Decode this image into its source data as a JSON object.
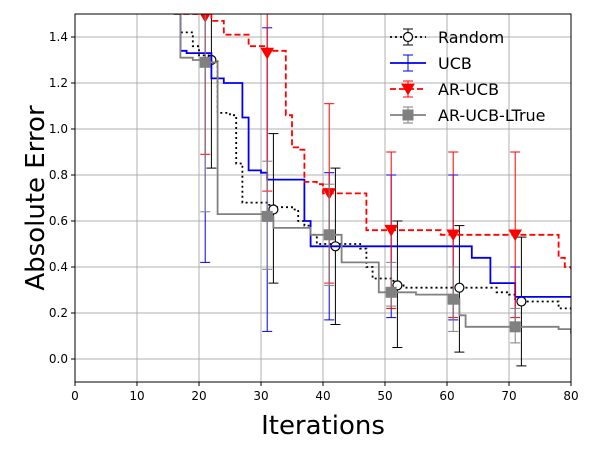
{
  "chart_data": {
    "type": "line",
    "xlabel": "Iterations",
    "ylabel": "Absolute Error",
    "xlim": [
      0,
      80
    ],
    "ylim": [
      -0.1,
      1.5
    ],
    "xticks": [
      0,
      10,
      20,
      30,
      40,
      50,
      60,
      70,
      80
    ],
    "yticks": [
      0.0,
      0.2,
      0.4,
      0.6,
      0.8,
      1.0,
      1.2,
      1.4
    ],
    "grid": true,
    "legend_position": "top-right",
    "series": [
      {
        "name": "Random",
        "color": "#000000",
        "style": "dotted",
        "marker": "circle-open",
        "x": [
          16,
          17,
          18,
          19,
          20,
          21,
          22,
          23,
          24,
          25,
          26,
          27,
          28,
          29,
          30,
          31,
          32,
          33,
          34,
          35,
          36,
          37,
          38,
          39,
          40,
          41,
          42,
          43,
          44,
          45,
          46,
          47,
          48,
          49,
          50,
          51,
          52,
          53,
          54,
          55,
          56,
          57,
          58,
          59,
          60,
          61,
          62,
          63,
          64,
          65,
          66,
          67,
          68,
          69,
          70,
          71,
          72,
          73,
          74,
          75,
          76,
          77,
          78,
          79,
          80
        ],
        "y": [
          1.5,
          1.42,
          1.42,
          1.36,
          1.32,
          1.32,
          1.3,
          1.07,
          1.07,
          1.06,
          0.85,
          0.68,
          0.68,
          0.68,
          0.68,
          0.67,
          0.66,
          0.66,
          0.66,
          0.65,
          0.6,
          0.58,
          0.54,
          0.5,
          0.5,
          0.5,
          0.5,
          0.5,
          0.5,
          0.5,
          0.48,
          0.4,
          0.35,
          0.35,
          0.35,
          0.34,
          0.32,
          0.31,
          0.31,
          0.31,
          0.31,
          0.31,
          0.31,
          0.31,
          0.31,
          0.31,
          0.31,
          0.31,
          0.31,
          0.31,
          0.31,
          0.31,
          0.29,
          0.29,
          0.28,
          0.25,
          0.25,
          0.25,
          0.25,
          0.25,
          0.25,
          0.25,
          0.22,
          0.22,
          0.22
        ],
        "markers": [
          {
            "x": 22,
            "y": 1.3,
            "err_low": 0.83,
            "err_high": 1.5
          },
          {
            "x": 32,
            "y": 0.65,
            "err_low": 0.33,
            "err_high": 0.98
          },
          {
            "x": 42,
            "y": 0.49,
            "err_low": 0.15,
            "err_high": 0.83
          },
          {
            "x": 52,
            "y": 0.32,
            "err_low": 0.05,
            "err_high": 0.6
          },
          {
            "x": 62,
            "y": 0.31,
            "err_low": 0.03,
            "err_high": 0.58
          },
          {
            "x": 72,
            "y": 0.25,
            "err_low": -0.03,
            "err_high": 0.53
          }
        ]
      },
      {
        "name": "UCB",
        "color": "#0000ee",
        "style": "solid",
        "marker": "none",
        "x": [
          16,
          17,
          18,
          19,
          20,
          21,
          22,
          23,
          24,
          25,
          26,
          27,
          28,
          29,
          30,
          31,
          32,
          33,
          34,
          35,
          36,
          37,
          38,
          39,
          40,
          41,
          42,
          43,
          44,
          45,
          46,
          47,
          48,
          49,
          50,
          51,
          52,
          53,
          54,
          55,
          56,
          57,
          58,
          59,
          60,
          61,
          62,
          63,
          64,
          65,
          66,
          67,
          68,
          69,
          70,
          71,
          72,
          73,
          74,
          75,
          76,
          77,
          78,
          79,
          80
        ],
        "y": [
          1.5,
          1.34,
          1.33,
          1.33,
          1.33,
          1.33,
          1.22,
          1.22,
          1.2,
          1.2,
          1.2,
          1.05,
          0.82,
          0.82,
          0.81,
          0.78,
          0.78,
          0.78,
          0.78,
          0.78,
          0.78,
          0.6,
          0.49,
          0.49,
          0.49,
          0.49,
          0.49,
          0.49,
          0.49,
          0.49,
          0.49,
          0.49,
          0.49,
          0.49,
          0.49,
          0.49,
          0.49,
          0.49,
          0.49,
          0.49,
          0.49,
          0.49,
          0.49,
          0.49,
          0.49,
          0.49,
          0.49,
          0.49,
          0.44,
          0.44,
          0.44,
          0.33,
          0.33,
          0.33,
          0.33,
          0.27,
          0.27,
          0.27,
          0.27,
          0.27,
          0.27,
          0.27,
          0.27,
          0.27,
          0.27
        ],
        "markers": [
          {
            "x": 21,
            "y": 1.3,
            "err_low": 0.42,
            "err_high": 1.5
          },
          {
            "x": 31,
            "y": 0.78,
            "err_low": 0.12,
            "err_high": 1.44
          },
          {
            "x": 41,
            "y": 0.49,
            "err_low": 0.17,
            "err_high": 0.81
          },
          {
            "x": 51,
            "y": 0.49,
            "err_low": 0.18,
            "err_high": 0.8
          },
          {
            "x": 61,
            "y": 0.49,
            "err_low": 0.17,
            "err_high": 0.8
          },
          {
            "x": 71,
            "y": 0.27,
            "err_low": 0.13,
            "err_high": 0.4
          }
        ]
      },
      {
        "name": "AR-UCB",
        "color": "#ff0000",
        "style": "dashed",
        "marker": "triangle-down",
        "x": [
          16,
          17,
          18,
          19,
          20,
          21,
          22,
          23,
          24,
          25,
          26,
          27,
          28,
          29,
          30,
          31,
          32,
          33,
          34,
          35,
          36,
          37,
          38,
          39,
          40,
          41,
          42,
          43,
          44,
          45,
          46,
          47,
          48,
          49,
          50,
          51,
          52,
          53,
          54,
          55,
          56,
          57,
          58,
          59,
          60,
          61,
          62,
          63,
          64,
          65,
          66,
          67,
          68,
          69,
          70,
          71,
          72,
          73,
          74,
          75,
          76,
          77,
          78,
          79,
          80
        ],
        "y": [
          1.5,
          1.5,
          1.5,
          1.5,
          1.5,
          1.5,
          1.47,
          1.47,
          1.41,
          1.41,
          1.41,
          1.41,
          1.36,
          1.36,
          1.36,
          1.34,
          1.34,
          1.34,
          1.06,
          0.92,
          0.91,
          0.77,
          0.77,
          0.76,
          0.72,
          0.72,
          0.72,
          0.72,
          0.72,
          0.72,
          0.72,
          0.56,
          0.56,
          0.56,
          0.56,
          0.56,
          0.56,
          0.56,
          0.56,
          0.56,
          0.56,
          0.56,
          0.56,
          0.54,
          0.54,
          0.54,
          0.54,
          0.54,
          0.54,
          0.54,
          0.54,
          0.54,
          0.54,
          0.54,
          0.54,
          0.54,
          0.54,
          0.54,
          0.54,
          0.54,
          0.54,
          0.54,
          0.44,
          0.4,
          0.39
        ],
        "markers": [
          {
            "x": 21,
            "y": 1.49,
            "err_low": 0.89,
            "err_high": 1.5
          },
          {
            "x": 31,
            "y": 1.33,
            "err_low": 0.73,
            "err_high": 1.5
          },
          {
            "x": 41,
            "y": 0.72,
            "err_low": 0.33,
            "err_high": 1.11
          },
          {
            "x": 51,
            "y": 0.56,
            "err_low": 0.22,
            "err_high": 0.9
          },
          {
            "x": 61,
            "y": 0.54,
            "err_low": 0.18,
            "err_high": 0.9
          },
          {
            "x": 71,
            "y": 0.54,
            "err_low": 0.18,
            "err_high": 0.9
          }
        ]
      },
      {
        "name": "AR-UCB-LTrue",
        "color": "#808080",
        "style": "solid",
        "marker": "square",
        "x": [
          16,
          17,
          18,
          19,
          20,
          21,
          22,
          23,
          24,
          25,
          26,
          27,
          28,
          29,
          30,
          31,
          32,
          33,
          34,
          35,
          36,
          37,
          38,
          39,
          40,
          41,
          42,
          43,
          44,
          45,
          46,
          47,
          48,
          49,
          50,
          51,
          52,
          53,
          54,
          55,
          56,
          57,
          58,
          59,
          60,
          61,
          62,
          63,
          64,
          65,
          66,
          67,
          68,
          69,
          70,
          71,
          72,
          73,
          74,
          75,
          76,
          77,
          78,
          79,
          80
        ],
        "y": [
          1.5,
          1.31,
          1.31,
          1.3,
          1.3,
          1.29,
          1.29,
          0.63,
          0.63,
          0.63,
          0.63,
          0.63,
          0.63,
          0.63,
          0.63,
          0.62,
          0.57,
          0.57,
          0.57,
          0.57,
          0.57,
          0.57,
          0.54,
          0.54,
          0.54,
          0.54,
          0.54,
          0.42,
          0.42,
          0.42,
          0.42,
          0.42,
          0.42,
          0.29,
          0.29,
          0.29,
          0.29,
          0.29,
          0.29,
          0.28,
          0.28,
          0.28,
          0.28,
          0.28,
          0.28,
          0.26,
          0.19,
          0.14,
          0.14,
          0.14,
          0.14,
          0.14,
          0.14,
          0.14,
          0.14,
          0.14,
          0.14,
          0.14,
          0.14,
          0.14,
          0.14,
          0.14,
          0.13,
          0.13,
          0.11
        ],
        "markers": [
          {
            "x": 21,
            "y": 1.29,
            "err_low": 0.64,
            "err_high": 1.5
          },
          {
            "x": 31,
            "y": 0.62,
            "err_low": 0.39,
            "err_high": 0.86
          },
          {
            "x": 41,
            "y": 0.54,
            "err_low": 0.32,
            "err_high": 0.76
          },
          {
            "x": 51,
            "y": 0.29,
            "err_low": 0.23,
            "err_high": 0.42
          },
          {
            "x": 61,
            "y": 0.26,
            "err_low": 0.12,
            "err_high": 0.4
          },
          {
            "x": 71,
            "y": 0.14,
            "err_low": 0.07,
            "err_high": 0.22
          }
        ]
      }
    ]
  }
}
